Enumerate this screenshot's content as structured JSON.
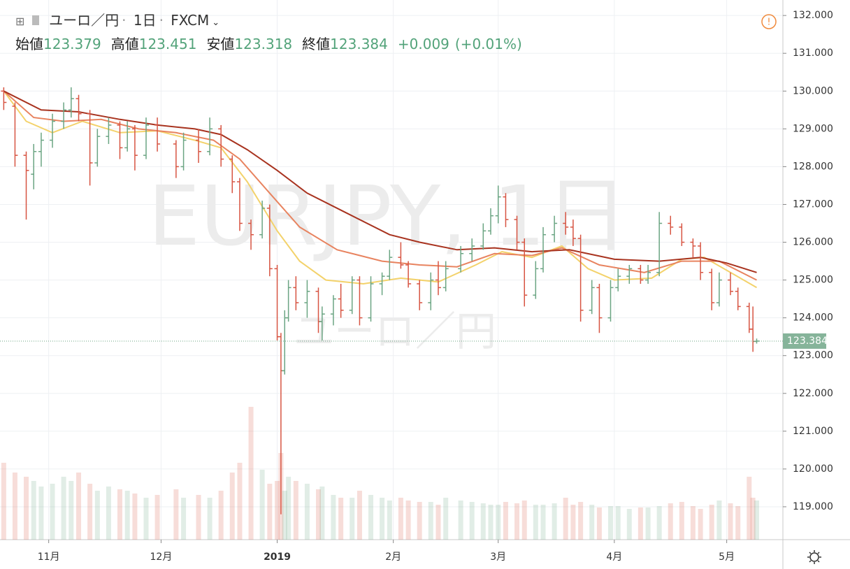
{
  "header": {
    "symbol": "ユーロ／円",
    "interval": "1日",
    "exchange": "FXCM",
    "ohlc": [
      {
        "label": "始値",
        "value": "123.379"
      },
      {
        "label": "高値",
        "value": "123.451"
      },
      {
        "label": "安値",
        "value": "123.318"
      },
      {
        "label": "終値",
        "value": "123.384"
      }
    ],
    "change": "+0.009",
    "change_pct": "(+0.01%)"
  },
  "watermark": {
    "symbol": "EURJPY, 1日",
    "description": "ユーロ／円"
  },
  "chart_data": {
    "type": "ohlc",
    "x": [
      19,
      22,
      25,
      27,
      29,
      32,
      35,
      37,
      39,
      42,
      44,
      47,
      50,
      52,
      54,
      57,
      60,
      65,
      67,
      71,
      74,
      77,
      80,
      82,
      85,
      88,
      90,
      92,
      93,
      94,
      95,
      97,
      100,
      103,
      104,
      107,
      109,
      112,
      114,
      117,
      120,
      122,
      125,
      127,
      130,
      133,
      135,
      137,
      141,
      144,
      147,
      149,
      151,
      153,
      156,
      158,
      161,
      163,
      166,
      169,
      171,
      173,
      176,
      178,
      181,
      183,
      186,
      189,
      191,
      194,
      197,
      200,
      203,
      205,
      208,
      210,
      213,
      215,
      218,
      219,
      220
    ],
    "open": [
      130.0,
      129.6,
      128.3,
      127.8,
      128.4,
      128.7,
      129.2,
      129.5,
      129.8,
      129.4,
      128.1,
      128.8,
      129.1,
      128.5,
      129.0,
      128.3,
      129.1,
      128.6,
      128.0,
      128.7,
      128.4,
      129.0,
      128.2,
      127.6,
      126.5,
      126.2,
      126.9,
      125.3,
      123.5,
      122.6,
      124.0,
      124.8,
      124.4,
      124.7,
      123.9,
      124.1,
      124.5,
      124.2,
      125.0,
      124.0,
      124.9,
      125.1,
      125.6,
      125.4,
      124.9,
      124.4,
      125.0,
      124.8,
      125.3,
      125.7,
      125.9,
      126.3,
      126.7,
      127.2,
      126.6,
      126.0,
      124.6,
      125.3,
      126.2,
      126.5,
      126.4,
      126.1,
      124.2,
      124.8,
      124.0,
      124.8,
      125.1,
      125.3,
      125.0,
      125.2,
      126.5,
      126.4,
      126.0,
      125.9,
      125.2,
      124.4,
      125.0,
      124.7,
      124.3,
      123.7,
      123.379
    ],
    "high": [
      130.1,
      129.7,
      128.4,
      128.6,
      128.9,
      129.4,
      129.7,
      130.1,
      129.9,
      129.5,
      129.0,
      129.3,
      129.2,
      129.2,
      129.1,
      129.3,
      129.3,
      128.7,
      128.9,
      129.0,
      129.3,
      129.1,
      128.3,
      127.7,
      126.6,
      127.1,
      127.0,
      125.4,
      123.6,
      124.2,
      125.0,
      125.1,
      125.0,
      124.8,
      124.3,
      124.6,
      124.9,
      125.1,
      125.1,
      125.1,
      125.2,
      125.8,
      126.0,
      125.5,
      125.0,
      125.2,
      125.5,
      125.5,
      125.9,
      126.1,
      126.5,
      126.9,
      127.5,
      127.3,
      126.7,
      126.1,
      125.5,
      126.4,
      126.7,
      126.8,
      126.6,
      126.2,
      125.0,
      124.9,
      125.0,
      125.3,
      125.4,
      125.4,
      125.4,
      126.8,
      126.7,
      126.5,
      126.1,
      126.0,
      125.3,
      125.2,
      125.2,
      124.8,
      124.4,
      124.3,
      123.451
    ],
    "low": [
      129.5,
      128.0,
      126.6,
      127.4,
      128.0,
      128.5,
      129.0,
      129.3,
      129.2,
      127.5,
      128.0,
      128.6,
      128.2,
      128.4,
      127.9,
      128.2,
      128.4,
      127.7,
      127.9,
      128.1,
      128.3,
      128.0,
      127.3,
      126.3,
      125.8,
      126.1,
      125.1,
      123.4,
      118.8,
      122.5,
      123.9,
      124.2,
      124.0,
      123.6,
      123.4,
      123.8,
      124.0,
      124.1,
      123.8,
      123.9,
      124.6,
      125.0,
      125.3,
      124.8,
      124.2,
      124.2,
      124.6,
      124.7,
      125.2,
      125.5,
      125.8,
      126.2,
      126.5,
      126.4,
      125.8,
      124.3,
      124.5,
      125.2,
      126.0,
      126.2,
      125.9,
      123.9,
      124.1,
      123.6,
      123.9,
      124.7,
      124.9,
      124.9,
      124.9,
      125.1,
      126.2,
      125.9,
      125.6,
      125.0,
      124.2,
      124.3,
      124.6,
      124.2,
      123.6,
      123.1,
      123.318
    ],
    "close": [
      129.7,
      128.3,
      127.9,
      128.4,
      128.7,
      129.2,
      129.5,
      129.8,
      129.4,
      128.1,
      128.8,
      129.1,
      128.5,
      129.0,
      128.3,
      129.1,
      128.6,
      128.0,
      128.7,
      128.4,
      129.0,
      128.2,
      127.6,
      126.5,
      126.2,
      126.9,
      125.3,
      123.5,
      122.6,
      124.0,
      124.8,
      124.4,
      124.7,
      123.9,
      124.1,
      124.5,
      124.2,
      125.0,
      124.0,
      124.9,
      125.1,
      125.6,
      125.4,
      124.9,
      124.4,
      125.0,
      124.8,
      125.3,
      125.7,
      125.9,
      126.3,
      126.7,
      127.2,
      126.6,
      126.0,
      124.6,
      125.3,
      126.2,
      126.5,
      126.4,
      126.1,
      124.2,
      124.8,
      124.0,
      124.8,
      125.1,
      125.3,
      125.0,
      125.2,
      126.5,
      126.4,
      126.0,
      125.9,
      125.2,
      124.4,
      125.0,
      124.7,
      124.3,
      123.7,
      123.375,
      123.384
    ],
    "volume": [
      55,
      48,
      45,
      42,
      38,
      40,
      45,
      42,
      48,
      40,
      35,
      38,
      36,
      35,
      33,
      30,
      32,
      36,
      30,
      32,
      30,
      35,
      48,
      55,
      95,
      50,
      40,
      42,
      62,
      35,
      45,
      42,
      40,
      36,
      38,
      32,
      30,
      30,
      35,
      32,
      30,
      28,
      30,
      28,
      27,
      27,
      25,
      30,
      28,
      27,
      26,
      25,
      25,
      27,
      26,
      28,
      25,
      25,
      26,
      30,
      25,
      27,
      25,
      23,
      24,
      24,
      22,
      23,
      23,
      24,
      26,
      27,
      24,
      22,
      25,
      28,
      26,
      24,
      45,
      30,
      28
    ],
    "volume_lim": [
      0,
      100
    ],
    "up_color": "#6ba583",
    "down_color": "#d75442",
    "ma": [
      {
        "color": "#f3d26b",
        "x": [
          19,
          25,
          32,
          40,
          50,
          60,
          70,
          77,
          84,
          92,
          98,
          105,
          115,
          125,
          135,
          145,
          152,
          160,
          168,
          175,
          182,
          192,
          200,
          206,
          213,
          220
        ],
        "values": [
          130.0,
          129.2,
          128.9,
          129.2,
          128.9,
          128.95,
          128.7,
          128.5,
          127.6,
          126.3,
          125.5,
          125.0,
          124.9,
          125.05,
          124.95,
          125.4,
          125.75,
          125.6,
          125.9,
          125.3,
          125.0,
          125.05,
          125.55,
          125.6,
          125.2,
          124.8
        ]
      },
      {
        "color": "#e8835f",
        "x": [
          19,
          27,
          35,
          45,
          55,
          65,
          75,
          82,
          90,
          98,
          108,
          120,
          130,
          140,
          150,
          160,
          168,
          178,
          190,
          200,
          210,
          220
        ],
        "values": [
          130.0,
          129.3,
          129.2,
          129.25,
          129.0,
          128.9,
          128.7,
          128.2,
          127.3,
          126.4,
          125.8,
          125.5,
          125.4,
          125.35,
          125.7,
          125.65,
          125.85,
          125.4,
          125.2,
          125.5,
          125.5,
          125.0
        ]
      },
      {
        "color": "#a8331f",
        "x": [
          19,
          29,
          39,
          50,
          60,
          70,
          77,
          84,
          92,
          100,
          110,
          122,
          130,
          140,
          150,
          160,
          170,
          182,
          194,
          205,
          212,
          220
        ],
        "values": [
          130.0,
          129.5,
          129.45,
          129.25,
          129.1,
          129.0,
          128.85,
          128.45,
          127.9,
          127.3,
          126.8,
          126.2,
          126.0,
          125.8,
          125.85,
          125.75,
          125.8,
          125.55,
          125.5,
          125.6,
          125.45,
          125.2
        ]
      }
    ],
    "last_price": 123.384,
    "xlim": [
      18,
      227
    ],
    "ylim": [
      118.13,
      132.41
    ],
    "xticks": [
      {
        "value": 31,
        "label": "11月"
      },
      {
        "value": 61,
        "label": "12月"
      },
      {
        "value": 92,
        "label": "2019"
      },
      {
        "value": 123,
        "label": "2月"
      },
      {
        "value": 151,
        "label": "3月"
      },
      {
        "value": 182,
        "label": "4月"
      },
      {
        "value": 212,
        "label": "5月"
      }
    ],
    "yticks": [
      {
        "value": 119,
        "label": "119.000"
      },
      {
        "value": 120,
        "label": "120.000"
      },
      {
        "value": 121,
        "label": "121.000"
      },
      {
        "value": 122,
        "label": "122.000"
      },
      {
        "value": 123,
        "label": "123.000"
      },
      {
        "value": 124,
        "label": "124.000"
      },
      {
        "value": 125,
        "label": "125.000"
      },
      {
        "value": 126,
        "label": "126.000"
      },
      {
        "value": 127,
        "label": "127.000"
      },
      {
        "value": 128,
        "label": "128.000"
      },
      {
        "value": 129,
        "label": "129.000"
      },
      {
        "value": 130,
        "label": "130.000"
      },
      {
        "value": 131,
        "label": "131.000"
      },
      {
        "value": 132,
        "label": "132.000"
      }
    ],
    "grid": true
  }
}
